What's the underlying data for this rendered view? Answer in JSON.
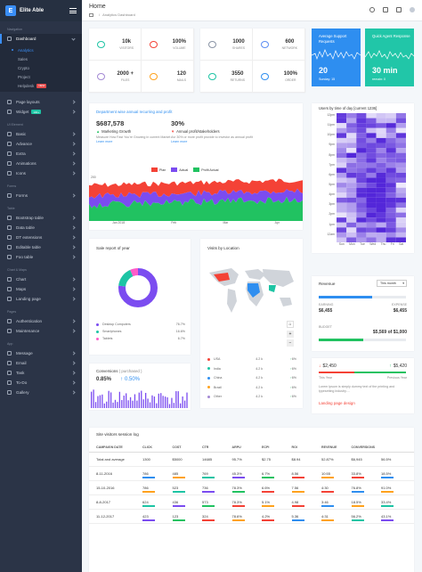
{
  "brand": {
    "name": "Elite Able",
    "logo_letter": "E"
  },
  "sidebar": {
    "section_navigation": "Navigation",
    "dashboard_label": "Dashboard",
    "sub_items": [
      {
        "label": "Analytics",
        "active": true
      },
      {
        "label": "Sales"
      },
      {
        "label": "Crypto"
      },
      {
        "label": "Project"
      },
      {
        "label": "Helpdesk",
        "badge": "NEW"
      }
    ],
    "page_layouts": "Page layouts",
    "widget_label": "Widget",
    "widget_badge": "100+",
    "section_ui": "UI Element",
    "ui_items": [
      "Basic",
      "Advance",
      "Extra",
      "Animations",
      "Icons"
    ],
    "section_forms": "Forms",
    "forms_items": [
      "Forms"
    ],
    "section_table": "Table",
    "table_items": [
      "Bootstrap table",
      "Data table",
      "DT extensions",
      "Editable table",
      "Foo table"
    ],
    "section_charts": "Chart & Maps",
    "chart_items": [
      "Chart",
      "Maps",
      "Landing page"
    ],
    "section_pages": "Pages",
    "pages_items": [
      "Authentication",
      "Maintenance"
    ],
    "section_app": "App",
    "app_items": [
      "Message",
      "Email",
      "Task",
      "To-Do",
      "Gallery"
    ]
  },
  "header": {
    "title": "Home",
    "crumb": "Analytics Dashboard"
  },
  "stats_a": [
    {
      "value": "10k",
      "label": "VISITORS",
      "icon": "eye-icon",
      "color": "#1dc4a4"
    },
    {
      "value": "100%",
      "label": "VOLUME",
      "icon": "music-icon",
      "color": "#f44236"
    },
    {
      "value": "2000 +",
      "label": "FILES",
      "icon": "file-icon",
      "color": "#a389d4"
    },
    {
      "value": "120",
      "label": "MAILS",
      "icon": "mail-icon",
      "color": "#ffa21d"
    }
  ],
  "stats_b": [
    {
      "value": "1000",
      "label": "SHARES",
      "icon": "share-icon",
      "color": "#8a94a5"
    },
    {
      "value": "600",
      "label": "NETWORK",
      "icon": "wifi-icon",
      "color": "#5c8cf3"
    },
    {
      "value": "3550",
      "label": "RETURNS",
      "icon": "rotate-icon",
      "color": "#1dc4a4"
    },
    {
      "value": "100%",
      "label": "ORDER",
      "icon": "cart-icon",
      "color": "#2e8ef0"
    }
  ],
  "support_card": {
    "title": "Average Support Requests",
    "value": "20",
    "sub": "Sunday: 15"
  },
  "agent_card": {
    "title": "Quick Agent Response",
    "value": "30 min",
    "sub": "remain: 0"
  },
  "revenue_card": {
    "title": "Department wise annual recurring and profit",
    "value_left": "$687,578",
    "label_left": "Marketing Growth",
    "text_left": "Measure How Fast You're Growing in current Market",
    "value_right": "30%",
    "label_right": "Annual profit/stakeholders",
    "text_right": "Avr 30% or more profit provide to investor as annual profit",
    "learn_more": "Learn more",
    "legend": [
      {
        "name": "Plan",
        "color": "#f44236"
      },
      {
        "name": "Actual",
        "color": "#7b4cf0"
      },
      {
        "name": "Profit Actual",
        "color": "#21c261"
      }
    ]
  },
  "heatmap": {
    "title": "Users by time of day [current 1236]",
    "hours": [
      "12pm",
      "11pm",
      "10pm",
      "9pm",
      "8pm",
      "7pm",
      "6pm",
      "5pm",
      "4pm",
      "3pm",
      "2pm",
      "1pm",
      "12am"
    ],
    "days": [
      "Sun",
      "Mon",
      "Tue",
      "Wed",
      "Thu",
      "Fri",
      "Sat"
    ]
  },
  "sale_report": {
    "title": "Sale report of year",
    "items": [
      {
        "label": "Desktop Computers",
        "value": "76.7%",
        "color": "#7b4cf0"
      },
      {
        "label": "Smartphones",
        "value": "16.6%",
        "color": "#1dc4a4"
      },
      {
        "label": "Tablets",
        "value": "6.7%",
        "color": "#ff5ac9"
      }
    ]
  },
  "visits_map": {
    "title": "Visits by Location",
    "rows": [
      {
        "country": "USA",
        "value": "4.2 k",
        "pct": "6%",
        "color": "#f44236"
      },
      {
        "country": "India",
        "value": "4.2 k",
        "pct": "6%",
        "color": "#1dc4a4"
      },
      {
        "country": "China",
        "value": "4.2 k",
        "pct": "6%",
        "color": "#2e8ef0"
      },
      {
        "country": "Brazil",
        "value": "4.2 k",
        "pct": "6%",
        "color": "#ffa21d"
      },
      {
        "country": "Other",
        "value": "4.2 k",
        "pct": "6%",
        "color": "#a389d4"
      }
    ]
  },
  "conversions": {
    "title": "Conversions",
    "suffix": "( purchased )",
    "value": "0.85%",
    "change": "0.50%"
  },
  "revenue_box": {
    "title": "Revenue",
    "select": "This month",
    "earning_label": "EARNING",
    "earning_value": "$6,455",
    "expense_label": "EXPENSE",
    "expense_value": "$6,455",
    "budget_label": "BUDGET",
    "budget_value": "$5,569 of $1,000"
  },
  "year_box": {
    "left_value": "$2,450",
    "right_value": "$5,420",
    "left_label": "This Year",
    "right_label": "Previous Year",
    "text": "Lorem Ipsum is simply dummy text of the printing and typesetting industry....",
    "link": "Landing page design"
  },
  "session_log": {
    "title": "Site visitors session log",
    "columns": [
      "CAMPAIGN DATE",
      "CLICK",
      "COST",
      "CTR",
      "ARPU",
      "ECPI",
      "ROI",
      "REVENUE",
      "CONVERSIONS"
    ],
    "rows": [
      {
        "date": "Total and average",
        "cells": [
          "1300",
          "$5000",
          "14685",
          "95.7%",
          "$2.75",
          "$8.94",
          "52.87%",
          "$6,945",
          "56.5%"
        ]
      },
      {
        "date": "8-11-2016",
        "cells": [
          "786",
          "485",
          "769",
          "45.3%",
          "6.7%",
          "8.56",
          "10:55",
          "33.8%",
          "18.5%"
        ]
      },
      {
        "date": "15-10-2016",
        "cells": [
          "786",
          "523",
          "736",
          "78.3%",
          "6.6%",
          "7.56",
          "4:30",
          "76.8%",
          "91.0%"
        ]
      },
      {
        "date": "8-8-2017",
        "cells": [
          "624",
          "436",
          "573",
          "78.3%",
          "5.1%",
          "4.98",
          "3:46",
          "18.5%",
          "33.4%"
        ]
      },
      {
        "date": "11-12-2017",
        "cells": [
          "423",
          "123",
          "324",
          "78.6%",
          "4.2%",
          "5.36",
          "4:31",
          "56.2%",
          "43.1%"
        ]
      }
    ]
  }
}
